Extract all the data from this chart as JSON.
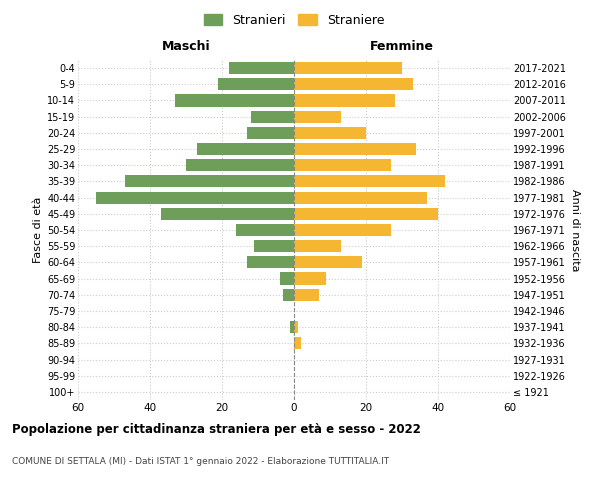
{
  "age_groups": [
    "100+",
    "95-99",
    "90-94",
    "85-89",
    "80-84",
    "75-79",
    "70-74",
    "65-69",
    "60-64",
    "55-59",
    "50-54",
    "45-49",
    "40-44",
    "35-39",
    "30-34",
    "25-29",
    "20-24",
    "15-19",
    "10-14",
    "5-9",
    "0-4"
  ],
  "birth_years": [
    "≤ 1921",
    "1922-1926",
    "1927-1931",
    "1932-1936",
    "1937-1941",
    "1942-1946",
    "1947-1951",
    "1952-1956",
    "1957-1961",
    "1962-1966",
    "1967-1971",
    "1972-1976",
    "1977-1981",
    "1982-1986",
    "1987-1991",
    "1992-1996",
    "1997-2001",
    "2002-2006",
    "2007-2011",
    "2012-2016",
    "2017-2021"
  ],
  "males": [
    0,
    0,
    0,
    0,
    1,
    0,
    3,
    4,
    13,
    11,
    16,
    37,
    55,
    47,
    30,
    27,
    13,
    12,
    33,
    21,
    18
  ],
  "females": [
    0,
    0,
    0,
    2,
    1,
    0,
    7,
    9,
    19,
    13,
    27,
    40,
    37,
    42,
    27,
    34,
    20,
    13,
    28,
    33,
    30
  ],
  "male_color": "#6d9e5a",
  "female_color": "#f5b731",
  "male_label": "Stranieri",
  "female_label": "Straniere",
  "title": "Popolazione per cittadinanza straniera per età e sesso - 2022",
  "subtitle": "COMUNE DI SETTALA (MI) - Dati ISTAT 1° gennaio 2022 - Elaborazione TUTTITALIA.IT",
  "xlabel_left": "Maschi",
  "xlabel_right": "Femmine",
  "ylabel_left": "Fasce di età",
  "ylabel_right": "Anni di nascita",
  "xlim": 60,
  "background_color": "#ffffff",
  "grid_color": "#cccccc"
}
